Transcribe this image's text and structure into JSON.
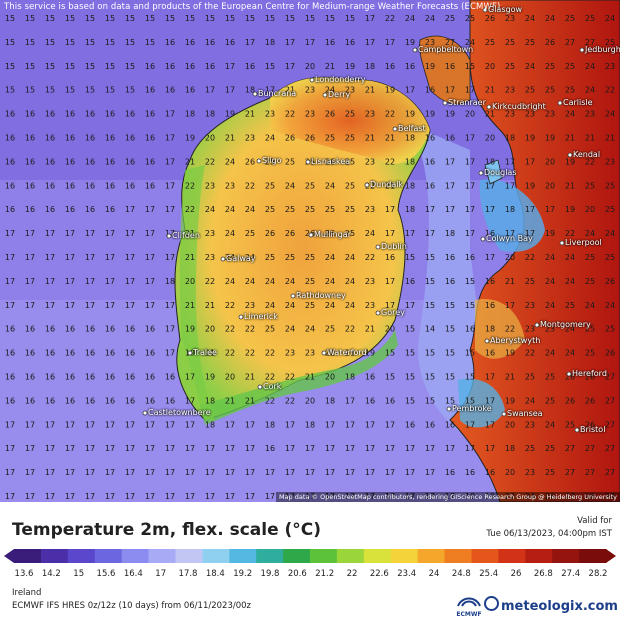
{
  "map": {
    "disclaimer": "This service is based on data and products of the European Centre for Medium-range Weather Forecasts (ECMWF)",
    "attribution": "Map data © OpenStreetMap contributors, rendering GIScience Research Group @ Heidelberg University",
    "places": [
      {
        "name": "Glasgow"
      },
      {
        "name": "Campbeltown"
      },
      {
        "name": "Jedburgh"
      },
      {
        "name": "Londonderry"
      },
      {
        "name": "Derry"
      },
      {
        "name": "Buncrana"
      },
      {
        "name": "Stranraer"
      },
      {
        "name": "Kirkcudbright"
      },
      {
        "name": "Carlisle"
      },
      {
        "name": "Belfast"
      },
      {
        "name": "Kendal"
      },
      {
        "name": "Sligo"
      },
      {
        "name": "Lisnaskea"
      },
      {
        "name": "Douglas"
      },
      {
        "name": "Dundalk"
      },
      {
        "name": "Clifden"
      },
      {
        "name": "Mullingar"
      },
      {
        "name": "Dublin"
      },
      {
        "name": "Colwyn Bay"
      },
      {
        "name": "Liverpool"
      },
      {
        "name": "Galway"
      },
      {
        "name": "Rathdowney"
      },
      {
        "name": "Limerick"
      },
      {
        "name": "Gorey"
      },
      {
        "name": "Montgomery"
      },
      {
        "name": "Aberystwyth"
      },
      {
        "name": "Tralee"
      },
      {
        "name": "Waterford"
      },
      {
        "name": "Hereford"
      },
      {
        "name": "Cork"
      },
      {
        "name": "Castletownbere"
      },
      {
        "name": "Pembroke"
      },
      {
        "name": "Swansea"
      },
      {
        "name": "Bristol"
      }
    ],
    "grid_rows": [
      [
        15,
        15,
        15,
        15,
        15,
        15,
        15,
        15,
        15,
        15,
        15,
        15,
        15,
        15,
        15,
        15,
        15,
        15,
        17,
        22,
        24,
        24,
        25,
        25,
        26,
        23,
        24,
        24,
        25,
        25,
        24
      ],
      [
        15,
        15,
        15,
        15,
        15,
        15,
        15,
        15,
        16,
        16,
        16,
        16,
        17,
        18,
        17,
        17,
        16,
        16,
        17,
        17,
        19,
        23,
        27,
        24,
        25,
        25,
        25,
        26,
        27,
        27,
        25
      ],
      [
        15,
        15,
        15,
        15,
        15,
        15,
        15,
        16,
        16,
        16,
        16,
        17,
        16,
        15,
        17,
        20,
        21,
        19,
        18,
        16,
        16,
        19,
        16,
        15,
        20,
        25,
        24,
        25,
        25,
        24,
        23
      ],
      [
        15,
        15,
        15,
        15,
        15,
        15,
        15,
        16,
        16,
        16,
        17,
        17,
        18,
        17,
        21,
        23,
        24,
        23,
        21,
        19,
        17,
        16,
        17,
        17,
        21,
        23,
        25,
        25,
        25,
        24,
        22
      ],
      [
        16,
        16,
        16,
        16,
        16,
        16,
        16,
        16,
        17,
        18,
        18,
        19,
        21,
        23,
        22,
        23,
        26,
        25,
        23,
        22,
        19,
        19,
        19,
        20,
        21,
        23,
        23,
        23,
        24,
        23,
        24
      ],
      [
        16,
        16,
        16,
        16,
        16,
        16,
        16,
        16,
        17,
        19,
        20,
        21,
        23,
        24,
        26,
        26,
        25,
        25,
        21,
        21,
        18,
        16,
        16,
        17,
        20,
        18,
        19,
        19,
        21,
        21,
        21
      ],
      [
        16,
        16,
        16,
        16,
        16,
        16,
        16,
        16,
        17,
        21,
        22,
        24,
        26,
        25,
        25,
        25,
        26,
        25,
        23,
        22,
        18,
        16,
        17,
        17,
        18,
        17,
        17,
        20,
        19,
        22,
        23
      ],
      [
        16,
        16,
        16,
        16,
        16,
        16,
        16,
        16,
        17,
        22,
        23,
        23,
        22,
        25,
        24,
        25,
        24,
        25,
        22,
        21,
        18,
        16,
        17,
        17,
        17,
        17,
        19,
        20,
        21,
        25,
        25
      ],
      [
        16,
        16,
        16,
        16,
        16,
        16,
        17,
        17,
        17,
        22,
        24,
        24,
        24,
        25,
        25,
        25,
        25,
        25,
        23,
        17,
        18,
        17,
        17,
        17,
        17,
        18,
        17,
        17,
        19,
        20,
        25
      ],
      [
        17,
        17,
        17,
        17,
        17,
        17,
        17,
        17,
        17,
        21,
        23,
        24,
        25,
        26,
        26,
        26,
        26,
        25,
        24,
        17,
        17,
        17,
        18,
        17,
        16,
        17,
        17,
        19,
        22,
        24,
        24
      ],
      [
        17,
        17,
        17,
        17,
        17,
        17,
        17,
        17,
        17,
        21,
        23,
        24,
        24,
        25,
        25,
        25,
        24,
        24,
        22,
        16,
        15,
        15,
        16,
        16,
        17,
        20,
        22,
        24,
        24,
        25,
        25
      ],
      [
        17,
        17,
        17,
        17,
        17,
        17,
        17,
        17,
        18,
        20,
        22,
        24,
        24,
        24,
        24,
        25,
        24,
        24,
        23,
        17,
        16,
        15,
        16,
        15,
        16,
        21,
        25,
        24,
        24,
        25,
        26
      ],
      [
        17,
        17,
        17,
        17,
        17,
        17,
        17,
        17,
        17,
        21,
        21,
        22,
        23,
        24,
        24,
        25,
        24,
        24,
        23,
        17,
        17,
        15,
        15,
        15,
        16,
        17,
        23,
        24,
        25,
        24,
        24
      ],
      [
        16,
        16,
        16,
        16,
        16,
        16,
        16,
        16,
        17,
        19,
        20,
        22,
        22,
        25,
        24,
        24,
        25,
        22,
        21,
        20,
        15,
        14,
        15,
        16,
        18,
        22,
        23,
        23,
        24,
        25,
        25
      ],
      [
        16,
        16,
        16,
        16,
        16,
        16,
        16,
        16,
        17,
        19,
        21,
        22,
        22,
        22,
        23,
        23,
        22,
        21,
        19,
        15,
        15,
        15,
        15,
        15,
        16,
        19,
        22,
        24,
        24,
        25,
        26
      ],
      [
        16,
        16,
        16,
        16,
        16,
        16,
        16,
        16,
        16,
        17,
        19,
        20,
        21,
        22,
        22,
        21,
        20,
        18,
        16,
        15,
        15,
        15,
        15,
        15,
        17,
        21,
        25,
        25,
        26,
        26,
        27
      ],
      [
        16,
        16,
        16,
        16,
        16,
        16,
        16,
        16,
        16,
        17,
        18,
        21,
        21,
        22,
        22,
        20,
        18,
        17,
        16,
        16,
        15,
        15,
        15,
        15,
        17,
        19,
        24,
        25,
        26,
        26,
        27
      ],
      [
        17,
        17,
        17,
        17,
        17,
        17,
        17,
        17,
        17,
        17,
        18,
        17,
        17,
        18,
        17,
        18,
        17,
        17,
        17,
        17,
        16,
        16,
        16,
        17,
        17,
        20,
        23,
        24,
        25,
        26,
        27
      ],
      [
        17,
        17,
        17,
        17,
        17,
        17,
        17,
        17,
        17,
        17,
        17,
        17,
        17,
        16,
        17,
        17,
        17,
        17,
        17,
        17,
        17,
        17,
        17,
        17,
        17,
        18,
        25,
        25,
        27,
        27,
        27
      ],
      [
        17,
        17,
        17,
        17,
        17,
        17,
        17,
        17,
        17,
        17,
        17,
        17,
        17,
        17,
        17,
        17,
        17,
        17,
        17,
        17,
        17,
        17,
        16,
        16,
        16,
        20,
        23,
        25,
        27,
        27,
        27
      ],
      [
        17,
        17,
        17,
        17,
        17,
        17,
        17,
        17,
        17,
        17,
        17,
        17,
        17,
        17,
        17,
        17,
        17,
        17,
        17,
        17,
        17,
        17,
        17,
        18,
        19,
        22,
        24,
        26,
        27,
        28,
        28
      ]
    ]
  },
  "legend": {
    "title": "Temperature 2m, flex. scale (°C)",
    "valid_label": "Valid for",
    "valid_date": "Tue 06/13/2023, 04:00pm IST",
    "ticks": [
      "13.6",
      "14.2",
      "15",
      "15.6",
      "16.4",
      "17",
      "17.8",
      "18.4",
      "19.2",
      "19.8",
      "20.6",
      "21.2",
      "22",
      "22.6",
      "23.4",
      "24",
      "24.8",
      "25.4",
      "26",
      "26.8",
      "27.4",
      "28.2"
    ],
    "colors": [
      "#3a1c7a",
      "#4b2fa8",
      "#5a47cc",
      "#6c66e0",
      "#8b8bf0",
      "#a9aaf5",
      "#c1c6f3",
      "#8fd0f0",
      "#55b8e3",
      "#2fae9e",
      "#2fa84a",
      "#5cc23a",
      "#9ad53a",
      "#d8e23a",
      "#f3d23a",
      "#f5a72c",
      "#ef7e22",
      "#e4561c",
      "#d23316",
      "#b71e12",
      "#951410",
      "#7a0d0c"
    ]
  },
  "footer": {
    "region": "Ireland",
    "model": "ECMWF IFS HRES 0z/12z (10 days)  from  06/11/2023/00z",
    "brand": "meteologix.com",
    "logo_text": "ECMWF"
  }
}
